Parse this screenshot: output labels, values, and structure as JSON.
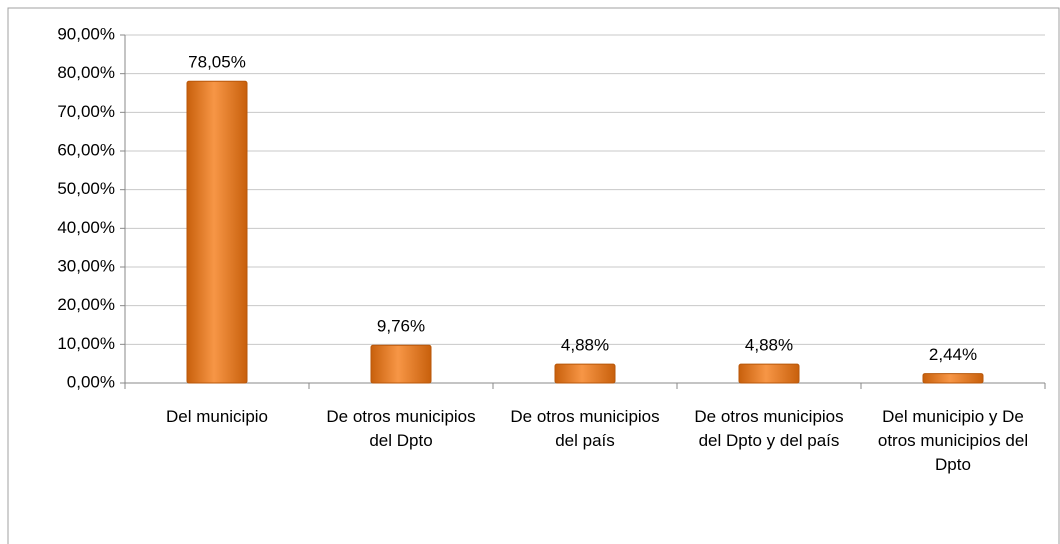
{
  "chart_data": {
    "type": "bar",
    "categories": [
      "Del municipio",
      "De otros municipios del Dpto",
      "De otros municipios del país",
      "De otros municipios del Dpto y del país",
      "Del municipio y De otros municipios del Dpto"
    ],
    "values": [
      78.05,
      9.76,
      4.88,
      4.88,
      2.44
    ],
    "value_labels": [
      "78,05%",
      "9,76%",
      "4,88%",
      "4,88%",
      "2,44%"
    ],
    "color": "#f79646",
    "ylim": [
      0,
      90
    ],
    "yticks": [
      {
        "value": 0,
        "label": "0,00%"
      },
      {
        "value": 10,
        "label": "10,00%"
      },
      {
        "value": 20,
        "label": "20,00%"
      },
      {
        "value": 30,
        "label": "30,00%"
      },
      {
        "value": 40,
        "label": "40,00%"
      },
      {
        "value": 50,
        "label": "50,00%"
      },
      {
        "value": 60,
        "label": "60,00%"
      },
      {
        "value": 70,
        "label": "70,00%"
      },
      {
        "value": 80,
        "label": "80,00%"
      },
      {
        "value": 90,
        "label": "90,00%"
      }
    ],
    "grid": true
  }
}
